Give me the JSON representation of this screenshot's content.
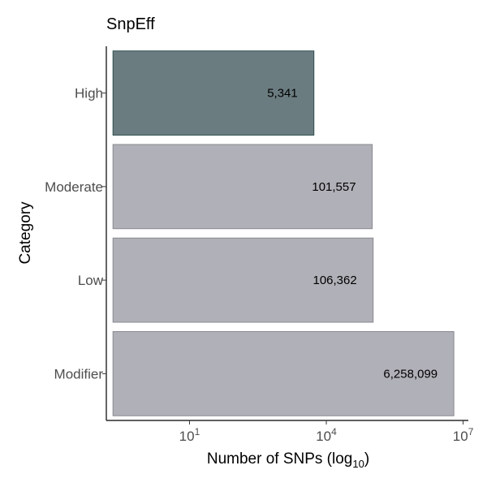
{
  "chart_data": {
    "type": "bar",
    "orientation": "horizontal",
    "title": "SnpEff",
    "xlabel": "Number of SNPs (log10)",
    "ylabel": "Category",
    "x_scale": "log10",
    "xlim": [
      0.15,
      13000000
    ],
    "x_ticks": [
      {
        "value": 10,
        "base": "10",
        "exp": "1"
      },
      {
        "value": 10000,
        "base": "10",
        "exp": "4"
      },
      {
        "value": 10000000,
        "base": "10",
        "exp": "7"
      }
    ],
    "categories": [
      "High",
      "Moderate",
      "Low",
      "Modifier"
    ],
    "values": [
      5341,
      101557,
      106362,
      6258099
    ],
    "value_labels": [
      "5,341",
      "101,557",
      "106,362",
      "6,258,099"
    ],
    "bar_colors": [
      "#6b7c80",
      "#b0b0b8",
      "#b0b0b8",
      "#b0b0b8"
    ],
    "bar_stroke_colors": [
      "#2f4f4f",
      "#8a8a90",
      "#8a8a90",
      "#8a8a90"
    ],
    "grid": false,
    "legend": "none"
  }
}
